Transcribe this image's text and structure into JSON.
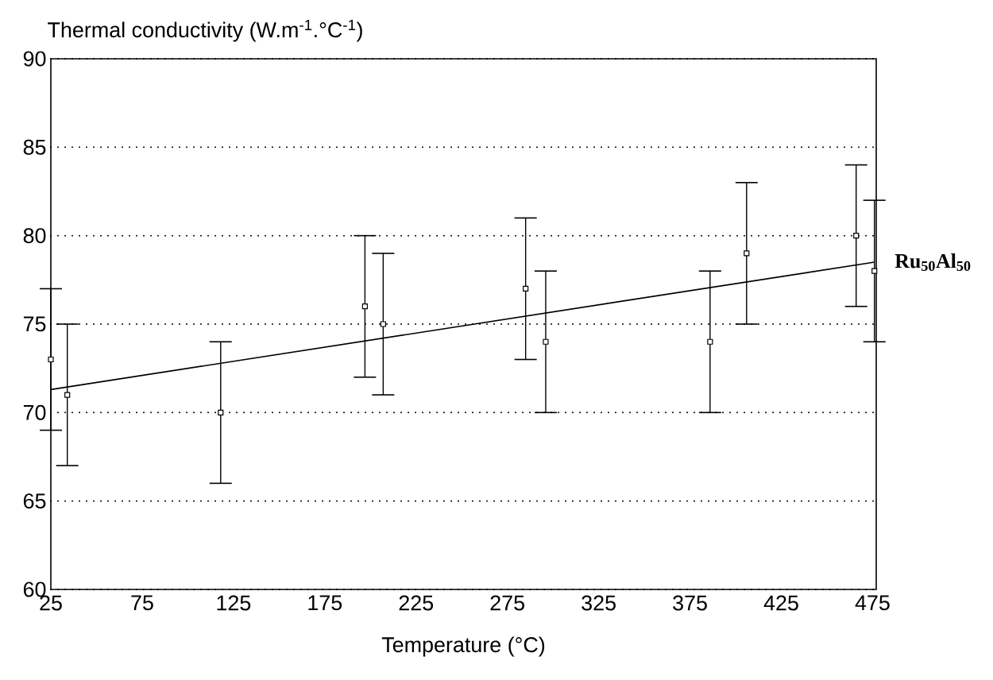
{
  "chart_data": {
    "type": "scatter",
    "ylabel": "Thermal conductivity (W.m$^{-1}$.°C$^{-1}$)",
    "xlabel": "Temperature (°C)",
    "xlim": [
      25,
      477
    ],
    "xticks": [
      25,
      75,
      125,
      175,
      225,
      275,
      325,
      375,
      425,
      475
    ],
    "ylim": [
      60,
      90
    ],
    "yticks": [
      60,
      65,
      70,
      75,
      80,
      85,
      90
    ],
    "grid": "y",
    "marker": "square",
    "series": [
      {
        "type": "scatter",
        "color": "#000000",
        "x": [
          25,
          34,
          118,
          197,
          207,
          285,
          296,
          386,
          406,
          466,
          476
        ],
        "values": [
          73,
          71,
          70,
          76,
          75,
          77,
          74,
          74,
          79,
          80,
          78
        ],
        "errors": [
          4,
          4,
          4,
          4,
          4,
          4,
          4,
          4,
          4,
          4,
          4
        ]
      },
      {
        "type": "line",
        "color": "#000000",
        "marker": "none",
        "x": [
          25,
          476
        ],
        "values": [
          71.3,
          78.5
        ]
      }
    ],
    "annotations": [
      {
        "text": "Ru$_{50}$Al$_{50}$",
        "x": 476,
        "y": 78.5
      }
    ]
  }
}
